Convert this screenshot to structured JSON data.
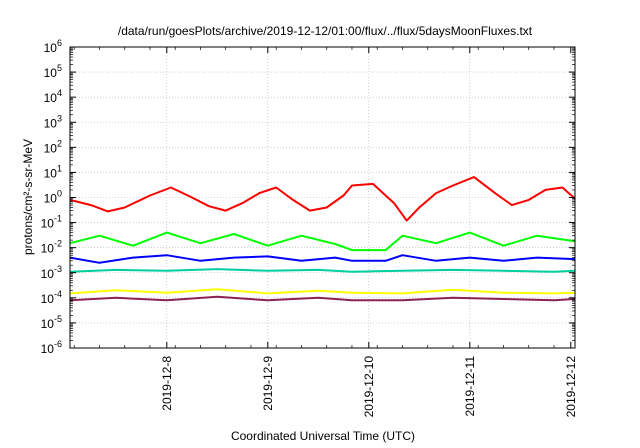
{
  "chart_data": {
    "type": "line",
    "title": "/data/run/goesPlots/archive/2019-12-12/01:00/flux/../flux/5daysMoonFluxes.txt",
    "xlabel": "Coordinated Universal Time (UTC)",
    "ylabel": "protons/cm²-s-sr-MeV",
    "yscale": "log",
    "ylim_exp": [
      -6,
      6
    ],
    "xlim": [
      "2019-12-07T01:00",
      "2019-12-12T01:00"
    ],
    "x_ticks": [
      "2019-12-8",
      "2019-12-9",
      "2019-12-10",
      "2019-12-11",
      "2019-12-12"
    ],
    "y_ticks": [
      {
        "base": "10",
        "exp": "-6"
      },
      {
        "base": "10",
        "exp": "-5"
      },
      {
        "base": "10",
        "exp": "-4"
      },
      {
        "base": "10",
        "exp": "-3"
      },
      {
        "base": "10",
        "exp": "-2"
      },
      {
        "base": "10",
        "exp": "-1"
      },
      {
        "base": "10",
        "exp": "0"
      },
      {
        "base": "10",
        "exp": "1"
      },
      {
        "base": "10",
        "exp": "2"
      },
      {
        "base": "10",
        "exp": "3"
      },
      {
        "base": "10",
        "exp": "4"
      },
      {
        "base": "10",
        "exp": "5"
      },
      {
        "base": "10",
        "exp": "6"
      }
    ],
    "grid": true,
    "series": [
      {
        "color": "#ff0000",
        "x": [
          "2019-12-07T01:00",
          "2019-12-07T06:00",
          "2019-12-07T10:00",
          "2019-12-07T14:00",
          "2019-12-07T20:00",
          "2019-12-08T01:00",
          "2019-12-08T06:00",
          "2019-12-08T10:00",
          "2019-12-08T14:00",
          "2019-12-08T18:00",
          "2019-12-08T22:00",
          "2019-12-09T02:00",
          "2019-12-09T06:00",
          "2019-12-09T10:00",
          "2019-12-09T14:00",
          "2019-12-09T18:00",
          "2019-12-09T20:00",
          "2019-12-10T01:00",
          "2019-12-10T06:00",
          "2019-12-10T09:00",
          "2019-12-10T12:00",
          "2019-12-10T16:00",
          "2019-12-10T20:00",
          "2019-12-11T01:00",
          "2019-12-11T06:00",
          "2019-12-11T10:00",
          "2019-12-11T14:00",
          "2019-12-11T18:00",
          "2019-12-11T22:00",
          "2019-12-12T01:00"
        ],
        "y": [
          0.8,
          0.5,
          0.28,
          0.4,
          1.2,
          2.5,
          1.0,
          0.45,
          0.3,
          0.6,
          1.5,
          2.5,
          0.8,
          0.3,
          0.4,
          1.2,
          3.0,
          3.5,
          0.6,
          0.12,
          0.4,
          1.5,
          3.0,
          6.5,
          1.5,
          0.5,
          0.8,
          2.0,
          2.5,
          0.9
        ]
      },
      {
        "color": "#00ff00",
        "x": [
          "2019-12-07T01:00",
          "2019-12-07T08:00",
          "2019-12-07T16:00",
          "2019-12-08T00:00",
          "2019-12-08T08:00",
          "2019-12-08T16:00",
          "2019-12-09T00:00",
          "2019-12-09T08:00",
          "2019-12-09T16:00",
          "2019-12-09T20:00",
          "2019-12-10T04:00",
          "2019-12-10T08:00",
          "2019-12-10T16:00",
          "2019-12-11T00:00",
          "2019-12-11T08:00",
          "2019-12-11T16:00",
          "2019-12-12T01:00"
        ],
        "y": [
          0.015,
          0.03,
          0.012,
          0.04,
          0.015,
          0.035,
          0.012,
          0.03,
          0.014,
          0.008,
          0.008,
          0.03,
          0.015,
          0.04,
          0.012,
          0.03,
          0.018
        ]
      },
      {
        "color": "#0000ff",
        "x": [
          "2019-12-07T01:00",
          "2019-12-07T08:00",
          "2019-12-07T16:00",
          "2019-12-08T00:00",
          "2019-12-08T08:00",
          "2019-12-08T16:00",
          "2019-12-09T00:00",
          "2019-12-09T08:00",
          "2019-12-09T16:00",
          "2019-12-09T20:00",
          "2019-12-10T04:00",
          "2019-12-10T08:00",
          "2019-12-10T16:00",
          "2019-12-11T00:00",
          "2019-12-11T08:00",
          "2019-12-11T16:00",
          "2019-12-12T01:00"
        ],
        "y": [
          0.004,
          0.0025,
          0.004,
          0.005,
          0.003,
          0.004,
          0.0045,
          0.003,
          0.004,
          0.003,
          0.003,
          0.005,
          0.003,
          0.004,
          0.003,
          0.004,
          0.0035
        ]
      },
      {
        "color": "#00d0a0",
        "x": [
          "2019-12-07T01:00",
          "2019-12-07T12:00",
          "2019-12-08T00:00",
          "2019-12-08T12:00",
          "2019-12-09T00:00",
          "2019-12-09T12:00",
          "2019-12-09T20:00",
          "2019-12-10T08:00",
          "2019-12-10T20:00",
          "2019-12-11T08:00",
          "2019-12-11T20:00",
          "2019-12-12T01:00"
        ],
        "y": [
          0.0011,
          0.0013,
          0.0012,
          0.0014,
          0.0012,
          0.0013,
          0.0011,
          0.0012,
          0.0013,
          0.0012,
          0.0011,
          0.0012
        ]
      },
      {
        "color": "#ffff00",
        "x": [
          "2019-12-07T01:00",
          "2019-12-07T12:00",
          "2019-12-08T00:00",
          "2019-12-08T12:00",
          "2019-12-09T00:00",
          "2019-12-09T12:00",
          "2019-12-09T20:00",
          "2019-12-10T08:00",
          "2019-12-10T20:00",
          "2019-12-11T08:00",
          "2019-12-11T20:00",
          "2019-12-12T01:00"
        ],
        "y": [
          0.00015,
          0.0002,
          0.00016,
          0.00022,
          0.00015,
          0.00019,
          0.00016,
          0.00015,
          0.00021,
          0.00016,
          0.00015,
          0.00016
        ]
      },
      {
        "color": "#8b2252",
        "x": [
          "2019-12-07T01:00",
          "2019-12-07T12:00",
          "2019-12-08T00:00",
          "2019-12-08T12:00",
          "2019-12-09T00:00",
          "2019-12-09T12:00",
          "2019-12-09T20:00",
          "2019-12-10T08:00",
          "2019-12-10T20:00",
          "2019-12-11T08:00",
          "2019-12-11T20:00",
          "2019-12-12T01:00"
        ],
        "y": [
          8e-05,
          0.0001,
          8e-05,
          0.00011,
          8e-05,
          0.0001,
          8e-05,
          8e-05,
          0.0001,
          9e-05,
          8e-05,
          9e-05
        ]
      }
    ]
  }
}
